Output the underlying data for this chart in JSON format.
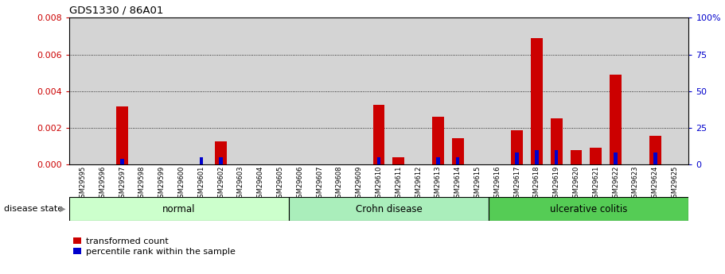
{
  "title": "GDS1330 / 86A01",
  "samples": [
    "GSM29595",
    "GSM29596",
    "GSM29597",
    "GSM29598",
    "GSM29599",
    "GSM29600",
    "GSM29601",
    "GSM29602",
    "GSM29603",
    "GSM29604",
    "GSM29605",
    "GSM29606",
    "GSM29607",
    "GSM29608",
    "GSM29609",
    "GSM29610",
    "GSM29611",
    "GSM29612",
    "GSM29613",
    "GSM29614",
    "GSM29615",
    "GSM29616",
    "GSM29617",
    "GSM29618",
    "GSM29619",
    "GSM29620",
    "GSM29621",
    "GSM29622",
    "GSM29623",
    "GSM29624",
    "GSM29625"
  ],
  "transformed_count": [
    0.0,
    0.0,
    0.00315,
    0.0,
    0.0,
    0.0,
    0.0,
    0.00125,
    0.0,
    0.0,
    0.0,
    0.0,
    0.0,
    0.0,
    0.0,
    0.00325,
    0.0004,
    0.0,
    0.0026,
    0.00145,
    0.0,
    0.0,
    0.00185,
    0.0069,
    0.0025,
    0.0008,
    0.0009,
    0.0049,
    0.0,
    0.00155,
    0.0
  ],
  "percentile_rank": [
    0,
    0,
    4,
    0,
    0,
    0,
    5,
    5,
    0,
    0,
    0,
    0,
    0,
    0,
    0,
    5,
    0,
    0,
    5,
    5,
    0,
    0,
    8,
    10,
    10,
    0,
    0,
    8,
    0,
    8,
    0
  ],
  "groups": [
    {
      "label": "normal",
      "start": 0,
      "end": 11,
      "color": "#ccffcc"
    },
    {
      "label": "Crohn disease",
      "start": 11,
      "end": 21,
      "color": "#aaeebb"
    },
    {
      "label": "ulcerative colitis",
      "start": 21,
      "end": 31,
      "color": "#55cc55"
    }
  ],
  "ylim_left": [
    0,
    0.008
  ],
  "ylim_right": [
    0,
    100
  ],
  "yticks_left": [
    0,
    0.002,
    0.004,
    0.006,
    0.008
  ],
  "yticks_right": [
    0,
    25,
    50,
    75,
    100
  ],
  "bar_color_red": "#cc0000",
  "bar_color_blue": "#0000cc",
  "bg_color": "#d4d4d4",
  "legend_red": "transformed count",
  "legend_blue": "percentile rank within the sample",
  "disease_state_label": "disease state"
}
